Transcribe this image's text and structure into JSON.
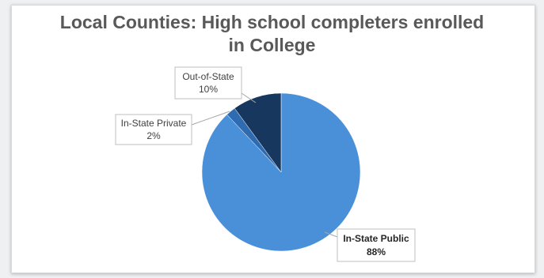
{
  "chart_data": {
    "type": "pie",
    "title": "Local Counties: High school completers enrolled in College",
    "title_lines": [
      "Local Counties: High school completers enrolled",
      "in College"
    ],
    "slices": [
      {
        "name": "In-State Public",
        "value": 88,
        "label": "88%",
        "color": "#4a90d9"
      },
      {
        "name": "In-State Private",
        "value": 2,
        "label": "2%",
        "color": "#2e6bb0"
      },
      {
        "name": "Out-of-State",
        "value": 10,
        "label": "10%",
        "color": "#17375e"
      }
    ],
    "start_angle": "12 o'clock",
    "direction": "clockwise",
    "legend": "none"
  }
}
